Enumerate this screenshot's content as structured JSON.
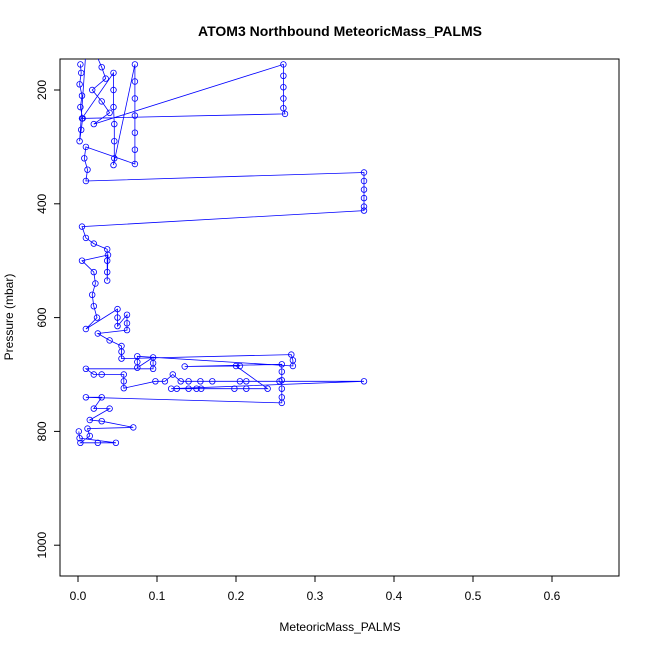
{
  "chart_data": {
    "type": "scatter",
    "title": "ATOM3 Northbound MeteoricMass_PALMS",
    "xlabel": "MeteoricMass_PALMS",
    "ylabel": "Pressure (mbar)",
    "xlim": [
      0,
      0.68
    ],
    "ylim": [
      1050,
      150
    ],
    "y_reversed": true,
    "xticks": [
      0.0,
      0.1,
      0.2,
      0.3,
      0.4,
      0.5,
      0.6
    ],
    "xtick_labels": [
      "0.0",
      "0.1",
      "0.2",
      "0.3",
      "0.4",
      "0.5",
      "0.6"
    ],
    "yticks": [
      200,
      400,
      600,
      800,
      1000
    ],
    "ytick_labels": [
      "200",
      "400",
      "600",
      "800",
      "1000"
    ],
    "grid": false,
    "legend": "none",
    "marker": "open-circle",
    "connected": true,
    "colors": {
      "series": "#0000ff",
      "axes": "#000000",
      "background": "#ffffff"
    },
    "series": [
      {
        "points": [
          [
            0.003,
            155
          ],
          [
            0.004,
            170
          ],
          [
            0.002,
            190
          ],
          [
            0.005,
            210
          ],
          [
            0.003,
            230
          ],
          [
            0.006,
            250
          ],
          [
            0.004,
            270
          ],
          [
            0.002,
            290
          ],
          [
            0.012,
            92
          ],
          [
            0.01,
            96
          ],
          [
            0.03,
            160
          ],
          [
            0.035,
            180
          ],
          [
            0.018,
            200
          ],
          [
            0.03,
            220
          ],
          [
            0.04,
            240
          ],
          [
            0.02,
            260
          ],
          [
            0.26,
            155
          ],
          [
            0.26,
            175
          ],
          [
            0.26,
            195
          ],
          [
            0.26,
            215
          ],
          [
            0.26,
            232
          ],
          [
            0.262,
            242
          ],
          [
            0.005,
            250
          ],
          [
            0.045,
            170
          ],
          [
            0.045,
            200
          ],
          [
            0.045,
            230
          ],
          [
            0.046,
            260
          ],
          [
            0.046,
            290
          ],
          [
            0.046,
            320
          ],
          [
            0.045,
            332
          ],
          [
            0.072,
            155
          ],
          [
            0.072,
            185
          ],
          [
            0.072,
            215
          ],
          [
            0.072,
            245
          ],
          [
            0.072,
            275
          ],
          [
            0.072,
            305
          ],
          [
            0.072,
            330
          ],
          [
            0.01,
            300
          ],
          [
            0.008,
            320
          ],
          [
            0.012,
            340
          ],
          [
            0.01,
            360
          ],
          [
            0.362,
            345
          ],
          [
            0.362,
            360
          ],
          [
            0.362,
            375
          ],
          [
            0.362,
            390
          ],
          [
            0.362,
            405
          ],
          [
            0.362,
            412
          ],
          [
            0.005,
            440
          ],
          [
            0.01,
            460
          ],
          [
            0.02,
            470
          ],
          [
            0.037,
            480
          ],
          [
            0.037,
            500
          ],
          [
            0.037,
            520
          ],
          [
            0.037,
            535
          ],
          [
            0.038,
            490
          ],
          [
            0.005,
            500
          ],
          [
            0.02,
            520
          ],
          [
            0.022,
            540
          ],
          [
            0.018,
            560
          ],
          [
            0.02,
            580
          ],
          [
            0.024,
            600
          ],
          [
            0.01,
            620
          ],
          [
            0.05,
            585
          ],
          [
            0.05,
            600
          ],
          [
            0.05,
            615
          ],
          [
            0.062,
            595
          ],
          [
            0.062,
            610
          ],
          [
            0.062,
            622
          ],
          [
            0.025,
            628
          ],
          [
            0.04,
            640
          ],
          [
            0.055,
            650
          ],
          [
            0.055,
            660
          ],
          [
            0.055,
            672
          ],
          [
            0.27,
            665
          ],
          [
            0.272,
            675
          ],
          [
            0.272,
            685
          ],
          [
            0.075,
            668
          ],
          [
            0.075,
            678
          ],
          [
            0.075,
            688
          ],
          [
            0.095,
            670
          ],
          [
            0.095,
            680
          ],
          [
            0.095,
            690
          ],
          [
            0.01,
            690
          ],
          [
            0.02,
            700
          ],
          [
            0.03,
            700
          ],
          [
            0.058,
            700
          ],
          [
            0.058,
            712
          ],
          [
            0.058,
            724
          ],
          [
            0.098,
            712
          ],
          [
            0.11,
            712
          ],
          [
            0.12,
            700
          ],
          [
            0.13,
            712
          ],
          [
            0.14,
            712
          ],
          [
            0.155,
            712
          ],
          [
            0.17,
            712
          ],
          [
            0.205,
            712
          ],
          [
            0.213,
            712
          ],
          [
            0.255,
            712
          ],
          [
            0.362,
            712
          ],
          [
            0.118,
            725
          ],
          [
            0.125,
            725
          ],
          [
            0.14,
            725
          ],
          [
            0.15,
            725
          ],
          [
            0.156,
            725
          ],
          [
            0.198,
            725
          ],
          [
            0.213,
            725
          ],
          [
            0.24,
            725
          ],
          [
            0.2,
            685
          ],
          [
            0.205,
            685
          ],
          [
            0.135,
            686
          ],
          [
            0.258,
            682
          ],
          [
            0.258,
            695
          ],
          [
            0.258,
            710
          ],
          [
            0.258,
            725
          ],
          [
            0.258,
            740
          ],
          [
            0.258,
            750
          ],
          [
            0.01,
            740
          ],
          [
            0.03,
            740
          ],
          [
            0.02,
            760
          ],
          [
            0.04,
            760
          ],
          [
            0.015,
            780
          ],
          [
            0.03,
            782
          ],
          [
            0.07,
            793
          ],
          [
            0.012,
            795
          ],
          [
            0.015,
            808
          ],
          [
            0.003,
            820
          ],
          [
            0.025,
            820
          ],
          [
            0.048,
            820
          ],
          [
            0.002,
            812
          ],
          [
            0.001,
            800
          ]
        ]
      }
    ]
  }
}
